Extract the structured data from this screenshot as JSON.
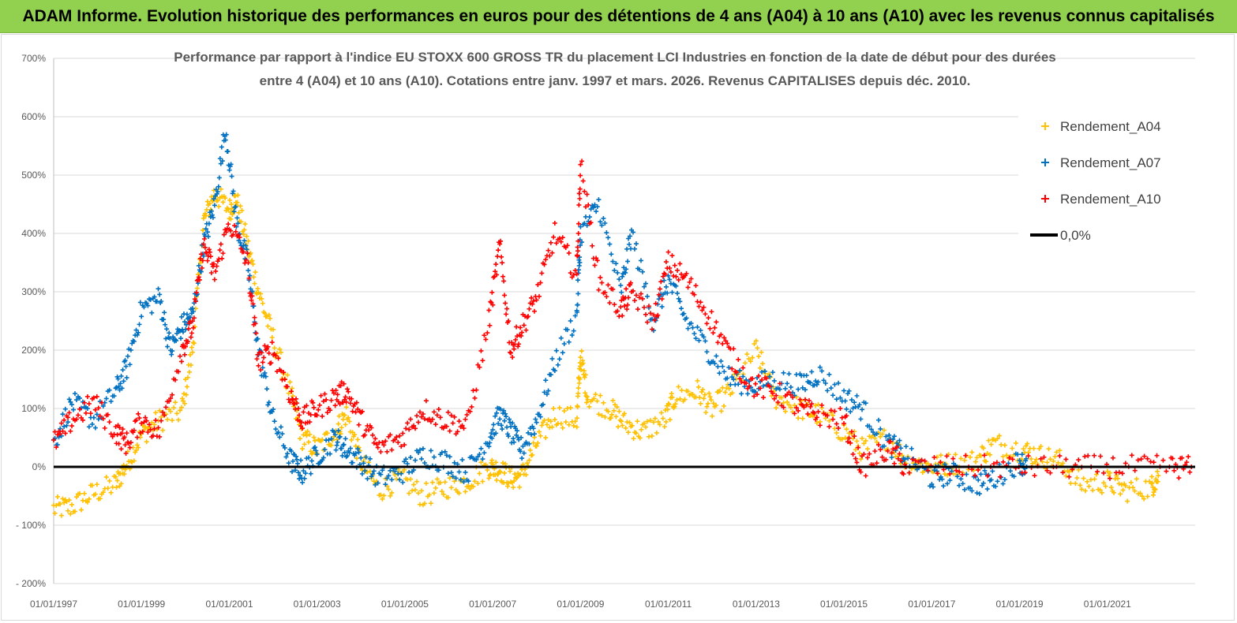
{
  "banner": {
    "title": "ADAM Informe. Evolution historique des performances en euros pour des détentions de 4 ans (A04) à 10 ans (A10) avec les revenus connus capitalisés"
  },
  "chart_data": {
    "type": "scatter",
    "title_line1": "Performance par rapport à l'indice EU STOXX 600 GROSS TR  du placement LCI Industries en fonction de la date de début pour des durées",
    "title_line2": "entre 4 (A04) et 10 ans (A10). Cotations entre janv. 1997 et mars. 2026. Revenus CAPITALISES depuis déc. 2010.",
    "xlabel": "",
    "ylabel": "",
    "x_ticks": [
      "01/01/1997",
      "01/01/1999",
      "01/01/2001",
      "01/01/2003",
      "01/01/2005",
      "01/01/2007",
      "01/01/2009",
      "01/01/2011",
      "01/01/2013",
      "01/01/2015",
      "01/01/2017",
      "01/01/2019",
      "01/01/2021"
    ],
    "xlim": [
      "1997-01-01",
      "2023-01-01"
    ],
    "y_ticks": [
      "- 200%",
      "- 100%",
      "0%",
      "100%",
      "200%",
      "300%",
      "400%",
      "500%",
      "600%",
      "700%"
    ],
    "ylim": [
      -200,
      700
    ],
    "grid": "horizontal",
    "legend_position": "top-right",
    "series": [
      {
        "name": "Rendement_A04",
        "color": "#ffc000",
        "marker": "plus",
        "points": [
          [
            "1997-01-01",
            -72
          ],
          [
            "1997-06-01",
            -68
          ],
          [
            "1997-12-01",
            -45
          ],
          [
            "1998-06-01",
            -30
          ],
          [
            "1998-09-01",
            5
          ],
          [
            "1999-01-01",
            55
          ],
          [
            "1999-06-01",
            80
          ],
          [
            "1999-12-01",
            95
          ],
          [
            "2000-03-01",
            200
          ],
          [
            "2000-06-01",
            420
          ],
          [
            "2000-09-01",
            470
          ],
          [
            "2001-01-01",
            440
          ],
          [
            "2001-03-01",
            460
          ],
          [
            "2001-06-01",
            380
          ],
          [
            "2001-09-01",
            300
          ],
          [
            "2002-01-01",
            220
          ],
          [
            "2002-06-01",
            120
          ],
          [
            "2002-09-01",
            50
          ],
          [
            "2003-01-01",
            30
          ],
          [
            "2003-06-01",
            60
          ],
          [
            "2003-09-01",
            90
          ],
          [
            "2004-01-01",
            10
          ],
          [
            "2004-06-01",
            -40
          ],
          [
            "2004-12-01",
            -20
          ],
          [
            "2005-06-01",
            -50
          ],
          [
            "2005-12-01",
            -35
          ],
          [
            "2006-06-01",
            -25
          ],
          [
            "2006-12-01",
            0
          ],
          [
            "2007-03-01",
            -5
          ],
          [
            "2007-06-01",
            -20
          ],
          [
            "2007-09-01",
            -15
          ],
          [
            "2008-01-01",
            40
          ],
          [
            "2008-06-01",
            90
          ],
          [
            "2008-12-01",
            80
          ],
          [
            "2009-01-01",
            190
          ],
          [
            "2009-03-01",
            120
          ],
          [
            "2009-09-01",
            100
          ],
          [
            "2010-01-01",
            75
          ],
          [
            "2010-06-01",
            60
          ],
          [
            "2010-12-01",
            80
          ],
          [
            "2011-03-01",
            120
          ],
          [
            "2011-09-01",
            130
          ],
          [
            "2012-01-01",
            100
          ],
          [
            "2012-06-01",
            130
          ],
          [
            "2013-01-01",
            200
          ],
          [
            "2013-06-01",
            120
          ],
          [
            "2014-01-01",
            100
          ],
          [
            "2014-06-01",
            90
          ],
          [
            "2015-01-01",
            60
          ],
          [
            "2015-06-01",
            30
          ],
          [
            "2016-01-01",
            50
          ],
          [
            "2016-06-01",
            10
          ],
          [
            "2017-01-01",
            0
          ],
          [
            "2017-06-01",
            5
          ],
          [
            "2018-01-01",
            10
          ],
          [
            "2018-06-01",
            40
          ],
          [
            "2019-01-01",
            30
          ],
          [
            "2019-06-01",
            20
          ],
          [
            "2019-12-01",
            10
          ],
          [
            "2020-06-01",
            -30
          ],
          [
            "2021-01-01",
            -25
          ],
          [
            "2021-06-01",
            -40
          ],
          [
            "2022-01-01",
            -35
          ],
          [
            "2022-03-01",
            -15
          ]
        ]
      },
      {
        "name": "Rendement_A07",
        "color": "#0070c0",
        "marker": "plus",
        "points": [
          [
            "1997-01-01",
            40
          ],
          [
            "1997-06-01",
            110
          ],
          [
            "1997-12-01",
            80
          ],
          [
            "1998-06-01",
            130
          ],
          [
            "1998-09-01",
            170
          ],
          [
            "1999-01-01",
            270
          ],
          [
            "1999-06-01",
            290
          ],
          [
            "1999-09-01",
            200
          ],
          [
            "1999-12-01",
            240
          ],
          [
            "2000-03-01",
            260
          ],
          [
            "2000-06-01",
            380
          ],
          [
            "2000-09-01",
            450
          ],
          [
            "2000-12-01",
            580
          ],
          [
            "2001-03-01",
            420
          ],
          [
            "2001-06-01",
            350
          ],
          [
            "2001-09-01",
            200
          ],
          [
            "2002-01-01",
            80
          ],
          [
            "2002-06-01",
            10
          ],
          [
            "2002-09-01",
            -10
          ],
          [
            "2003-01-01",
            20
          ],
          [
            "2003-06-01",
            50
          ],
          [
            "2003-09-01",
            30
          ],
          [
            "2004-01-01",
            10
          ],
          [
            "2004-06-01",
            -20
          ],
          [
            "2004-12-01",
            -10
          ],
          [
            "2005-06-01",
            20
          ],
          [
            "2005-12-01",
            10
          ],
          [
            "2006-06-01",
            -10
          ],
          [
            "2006-12-01",
            50
          ],
          [
            "2007-03-01",
            90
          ],
          [
            "2007-06-01",
            60
          ],
          [
            "2007-09-01",
            30
          ],
          [
            "2008-01-01",
            80
          ],
          [
            "2008-06-01",
            180
          ],
          [
            "2008-12-01",
            260
          ],
          [
            "2009-01-01",
            400
          ],
          [
            "2009-06-01",
            450
          ],
          [
            "2009-12-01",
            300
          ],
          [
            "2010-03-01",
            400
          ],
          [
            "2010-09-01",
            250
          ],
          [
            "2011-01-01",
            320
          ],
          [
            "2011-06-01",
            250
          ],
          [
            "2011-12-01",
            200
          ],
          [
            "2012-06-01",
            150
          ],
          [
            "2012-12-01",
            140
          ],
          [
            "2013-06-01",
            150
          ],
          [
            "2014-01-01",
            140
          ],
          [
            "2014-06-01",
            160
          ],
          [
            "2015-01-01",
            120
          ],
          [
            "2015-06-01",
            100
          ],
          [
            "2016-01-01",
            40
          ],
          [
            "2016-06-01",
            20
          ],
          [
            "2017-01-01",
            -20
          ],
          [
            "2017-06-01",
            -10
          ],
          [
            "2018-01-01",
            -30
          ],
          [
            "2018-06-01",
            -20
          ],
          [
            "2019-01-01",
            10
          ],
          [
            "2019-03-01",
            0
          ]
        ]
      },
      {
        "name": "Rendement_A10",
        "color": "#ff0000",
        "marker": "plus",
        "points": [
          [
            "1997-01-01",
            40
          ],
          [
            "1997-06-01",
            80
          ],
          [
            "1997-12-01",
            110
          ],
          [
            "1998-06-01",
            60
          ],
          [
            "1998-09-01",
            40
          ],
          [
            "1999-01-01",
            80
          ],
          [
            "1999-06-01",
            60
          ],
          [
            "1999-12-01",
            200
          ],
          [
            "2000-03-01",
            240
          ],
          [
            "2000-06-01",
            380
          ],
          [
            "2000-09-01",
            330
          ],
          [
            "2001-01-01",
            420
          ],
          [
            "2001-06-01",
            350
          ],
          [
            "2001-09-01",
            180
          ],
          [
            "2002-01-01",
            200
          ],
          [
            "2002-06-01",
            120
          ],
          [
            "2002-09-01",
            80
          ],
          [
            "2003-01-01",
            100
          ],
          [
            "2003-06-01",
            120
          ],
          [
            "2003-09-01",
            130
          ],
          [
            "2004-01-01",
            80
          ],
          [
            "2004-06-01",
            30
          ],
          [
            "2004-12-01",
            50
          ],
          [
            "2005-06-01",
            100
          ],
          [
            "2005-12-01",
            80
          ],
          [
            "2006-06-01",
            70
          ],
          [
            "2006-12-01",
            250
          ],
          [
            "2007-03-01",
            380
          ],
          [
            "2007-06-01",
            200
          ],
          [
            "2007-09-01",
            240
          ],
          [
            "2008-01-01",
            290
          ],
          [
            "2008-06-01",
            400
          ],
          [
            "2008-12-01",
            330
          ],
          [
            "2009-01-01",
            520
          ],
          [
            "2009-06-01",
            320
          ],
          [
            "2009-12-01",
            270
          ],
          [
            "2010-03-01",
            300
          ],
          [
            "2010-09-01",
            250
          ],
          [
            "2011-01-01",
            350
          ],
          [
            "2011-06-01",
            320
          ],
          [
            "2011-12-01",
            260
          ],
          [
            "2012-06-01",
            190
          ],
          [
            "2012-12-01",
            140
          ],
          [
            "2013-06-01",
            130
          ],
          [
            "2014-01-01",
            100
          ],
          [
            "2014-06-01",
            90
          ],
          [
            "2015-01-01",
            80
          ],
          [
            "2015-06-01",
            0
          ],
          [
            "2016-01-01",
            30
          ],
          [
            "2016-06-01",
            0
          ],
          [
            "2017-06-01",
            0
          ],
          [
            "2018-06-01",
            0
          ],
          [
            "2019-06-01",
            0
          ],
          [
            "2020-06-01",
            0
          ],
          [
            "2021-06-01",
            0
          ],
          [
            "2022-06-01",
            0
          ],
          [
            "2022-12-01",
            0
          ]
        ]
      }
    ],
    "reference_line": {
      "name": "0,0%",
      "y": 0,
      "color": "#000000"
    }
  }
}
